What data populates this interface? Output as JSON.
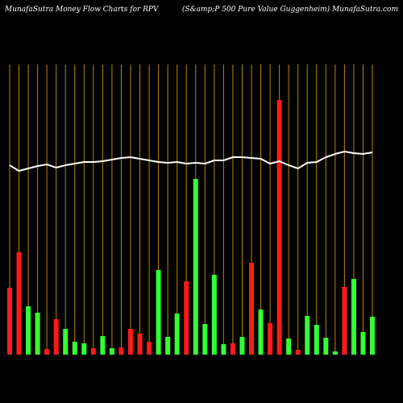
{
  "chart_data": {
    "type": "bar",
    "title": "MunafaSutra  Money Flow  Charts for RPV",
    "subtitle": "(S&amp;P 500  Pure  Value  Guggenheim) MunafaSutra.com",
    "ylim": [
      0,
      440
    ],
    "grid": true,
    "grid_color": "#b8860b",
    "up_color": "#33ff33",
    "down_color": "#ff1a1a",
    "line_color": "#ffffff",
    "series": [
      {
        "values": [
          83,
          127,
          60,
          52,
          7,
          44,
          32,
          16,
          14,
          8,
          23,
          8,
          9,
          32,
          26,
          16,
          105,
          22,
          51,
          91,
          218,
          38,
          99,
          13,
          14,
          22,
          114,
          56,
          39,
          316,
          20,
          6,
          48,
          37,
          21,
          4,
          84,
          94,
          28,
          47
        ],
        "directions": [
          "down",
          "down",
          "up",
          "up",
          "down",
          "down",
          "up",
          "up",
          "up",
          "down",
          "up",
          "up",
          "down",
          "down",
          "down",
          "down",
          "up",
          "up",
          "up",
          "down",
          "up",
          "up",
          "up",
          "up",
          "down",
          "up",
          "down",
          "up",
          "down",
          "down",
          "up",
          "down",
          "up",
          "up",
          "up",
          "up",
          "down",
          "up",
          "up",
          "up"
        ]
      },
      {
        "type": "line",
        "values": [
          235,
          228,
          231,
          234,
          236,
          232,
          235,
          237,
          239,
          239,
          240,
          242,
          244,
          245,
          243,
          241,
          239,
          238,
          239,
          237,
          238,
          237,
          241,
          241,
          245,
          245,
          244,
          243,
          237,
          240,
          235,
          231,
          238,
          239,
          245,
          249,
          252,
          250,
          249,
          251
        ]
      }
    ]
  }
}
